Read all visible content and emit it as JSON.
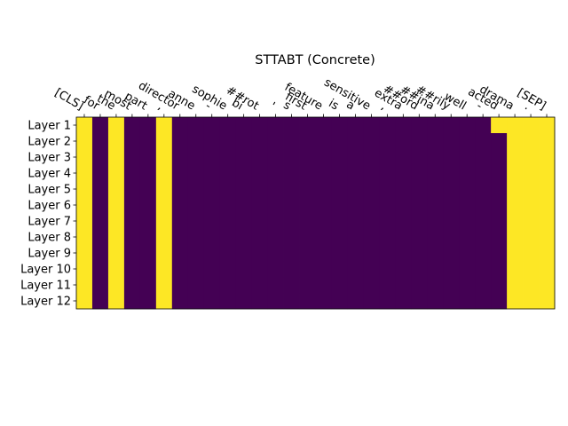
{
  "chart_data": {
    "type": "heatmap",
    "title": "STTABT (Concrete)",
    "x_tokens": [
      "[CLS]",
      "for",
      "the",
      "most",
      "part",
      ",",
      "director",
      "anne",
      "-",
      "sophie",
      "bi",
      "##rot",
      "'",
      "s",
      "first",
      "feature",
      "is",
      "a",
      "sensitive",
      ",",
      "extra",
      "##ord",
      "##ina",
      "##rily",
      "well",
      "-",
      "acted",
      "drama",
      ".",
      "[SEP]"
    ],
    "y_labels": [
      "Layer 1",
      "Layer 2",
      "Layer 3",
      "Layer 4",
      "Layer 5",
      "Layer 6",
      "Layer 7",
      "Layer 8",
      "Layer 9",
      "Layer 10",
      "Layer 11",
      "Layer 12"
    ],
    "colors": {
      "high": "#fde725",
      "low": "#440154"
    },
    "values": [
      [
        1,
        0,
        1,
        0,
        0,
        1,
        0,
        0,
        0,
        0,
        0,
        0,
        0,
        0,
        0,
        0,
        0,
        0,
        0,
        0,
        0,
        0,
        0,
        0,
        0,
        0,
        1,
        1,
        1,
        1
      ],
      [
        1,
        0,
        1,
        0,
        0,
        1,
        0,
        0,
        0,
        0,
        0,
        0,
        0,
        0,
        0,
        0,
        0,
        0,
        0,
        0,
        0,
        0,
        0,
        0,
        0,
        0,
        0,
        1,
        1,
        1
      ],
      [
        1,
        0,
        1,
        0,
        0,
        1,
        0,
        0,
        0,
        0,
        0,
        0,
        0,
        0,
        0,
        0,
        0,
        0,
        0,
        0,
        0,
        0,
        0,
        0,
        0,
        0,
        0,
        1,
        1,
        1
      ],
      [
        1,
        0,
        1,
        0,
        0,
        1,
        0,
        0,
        0,
        0,
        0,
        0,
        0,
        0,
        0,
        0,
        0,
        0,
        0,
        0,
        0,
        0,
        0,
        0,
        0,
        0,
        0,
        1,
        1,
        1
      ],
      [
        1,
        0,
        1,
        0,
        0,
        1,
        0,
        0,
        0,
        0,
        0,
        0,
        0,
        0,
        0,
        0,
        0,
        0,
        0,
        0,
        0,
        0,
        0,
        0,
        0,
        0,
        0,
        1,
        1,
        1
      ],
      [
        1,
        0,
        1,
        0,
        0,
        1,
        0,
        0,
        0,
        0,
        0,
        0,
        0,
        0,
        0,
        0,
        0,
        0,
        0,
        0,
        0,
        0,
        0,
        0,
        0,
        0,
        0,
        1,
        1,
        1
      ],
      [
        1,
        0,
        1,
        0,
        0,
        1,
        0,
        0,
        0,
        0,
        0,
        0,
        0,
        0,
        0,
        0,
        0,
        0,
        0,
        0,
        0,
        0,
        0,
        0,
        0,
        0,
        0,
        1,
        1,
        1
      ],
      [
        1,
        0,
        1,
        0,
        0,
        1,
        0,
        0,
        0,
        0,
        0,
        0,
        0,
        0,
        0,
        0,
        0,
        0,
        0,
        0,
        0,
        0,
        0,
        0,
        0,
        0,
        0,
        1,
        1,
        1
      ],
      [
        1,
        0,
        1,
        0,
        0,
        1,
        0,
        0,
        0,
        0,
        0,
        0,
        0,
        0,
        0,
        0,
        0,
        0,
        0,
        0,
        0,
        0,
        0,
        0,
        0,
        0,
        0,
        1,
        1,
        1
      ],
      [
        1,
        0,
        1,
        0,
        0,
        1,
        0,
        0,
        0,
        0,
        0,
        0,
        0,
        0,
        0,
        0,
        0,
        0,
        0,
        0,
        0,
        0,
        0,
        0,
        0,
        0,
        0,
        1,
        1,
        1
      ],
      [
        1,
        0,
        1,
        0,
        0,
        1,
        0,
        0,
        0,
        0,
        0,
        0,
        0,
        0,
        0,
        0,
        0,
        0,
        0,
        0,
        0,
        0,
        0,
        0,
        0,
        0,
        0,
        1,
        1,
        1
      ],
      [
        1,
        0,
        1,
        0,
        0,
        1,
        0,
        0,
        0,
        0,
        0,
        0,
        0,
        0,
        0,
        0,
        0,
        0,
        0,
        0,
        0,
        0,
        0,
        0,
        0,
        0,
        0,
        1,
        1,
        1
      ]
    ]
  }
}
